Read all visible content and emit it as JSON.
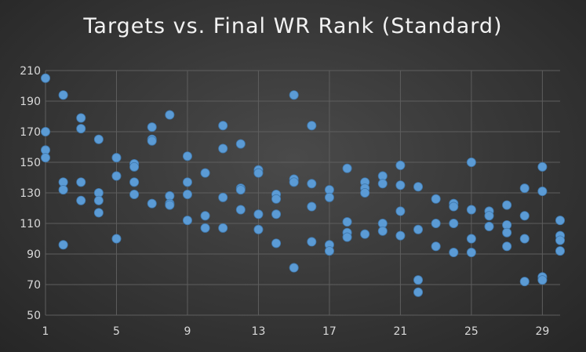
{
  "chart_data": {
    "type": "scatter",
    "title": "Targets vs. Final WR Rank (Standard)",
    "xlabel": "",
    "ylabel": "",
    "xlim": [
      1,
      30
    ],
    "ylim": [
      50,
      210
    ],
    "x_ticks": [
      1,
      5,
      9,
      13,
      17,
      21,
      25,
      29
    ],
    "y_ticks": [
      50,
      70,
      90,
      110,
      130,
      150,
      170,
      190,
      210
    ],
    "grid": true,
    "legend": "none",
    "point_color": "#5b9bd5",
    "background_color": "#3a3a3a",
    "series": [
      {
        "points": [
          [
            1,
            205
          ],
          [
            1,
            170
          ],
          [
            1,
            158
          ],
          [
            1,
            153
          ],
          [
            2,
            194
          ],
          [
            2,
            137
          ],
          [
            2,
            132
          ],
          [
            2,
            96
          ],
          [
            3,
            179
          ],
          [
            3,
            172
          ],
          [
            3,
            137
          ],
          [
            3,
            125
          ],
          [
            4,
            165
          ],
          [
            4,
            130
          ],
          [
            4,
            125
          ],
          [
            4,
            117
          ],
          [
            5,
            153
          ],
          [
            5,
            141
          ],
          [
            5,
            100
          ],
          [
            6,
            149
          ],
          [
            6,
            147
          ],
          [
            6,
            137
          ],
          [
            6,
            129
          ],
          [
            7,
            173
          ],
          [
            7,
            165
          ],
          [
            7,
            164
          ],
          [
            7,
            123
          ],
          [
            8,
            181
          ],
          [
            8,
            128
          ],
          [
            8,
            123
          ],
          [
            8,
            122
          ],
          [
            9,
            154
          ],
          [
            9,
            137
          ],
          [
            9,
            129
          ],
          [
            9,
            112
          ],
          [
            10,
            143
          ],
          [
            10,
            115
          ],
          [
            10,
            107
          ],
          [
            11,
            174
          ],
          [
            11,
            159
          ],
          [
            11,
            127
          ],
          [
            11,
            107
          ],
          [
            12,
            162
          ],
          [
            12,
            133
          ],
          [
            12,
            132
          ],
          [
            12,
            119
          ],
          [
            13,
            145
          ],
          [
            13,
            143
          ],
          [
            13,
            116
          ],
          [
            13,
            106
          ],
          [
            14,
            129
          ],
          [
            14,
            126
          ],
          [
            14,
            116
          ],
          [
            14,
            97
          ],
          [
            15,
            194
          ],
          [
            15,
            139
          ],
          [
            15,
            137
          ],
          [
            15,
            81
          ],
          [
            16,
            174
          ],
          [
            16,
            136
          ],
          [
            16,
            121
          ],
          [
            16,
            98
          ],
          [
            17,
            132
          ],
          [
            17,
            127
          ],
          [
            17,
            96
          ],
          [
            17,
            92
          ],
          [
            18,
            146
          ],
          [
            18,
            111
          ],
          [
            18,
            104
          ],
          [
            18,
            101
          ],
          [
            19,
            137
          ],
          [
            19,
            133
          ],
          [
            19,
            130
          ],
          [
            19,
            103
          ],
          [
            20,
            141
          ],
          [
            20,
            136
          ],
          [
            20,
            110
          ],
          [
            20,
            105
          ],
          [
            21,
            148
          ],
          [
            21,
            135
          ],
          [
            21,
            118
          ],
          [
            21,
            102
          ],
          [
            22,
            134
          ],
          [
            22,
            106
          ],
          [
            22,
            73
          ],
          [
            22,
            65
          ],
          [
            23,
            126
          ],
          [
            23,
            110
          ],
          [
            23,
            95
          ],
          [
            24,
            123
          ],
          [
            24,
            121
          ],
          [
            24,
            110
          ],
          [
            24,
            91
          ],
          [
            25,
            150
          ],
          [
            25,
            119
          ],
          [
            25,
            100
          ],
          [
            25,
            91
          ],
          [
            26,
            118
          ],
          [
            26,
            115
          ],
          [
            26,
            108
          ],
          [
            27,
            122
          ],
          [
            27,
            109
          ],
          [
            27,
            104
          ],
          [
            27,
            95
          ],
          [
            28,
            133
          ],
          [
            28,
            115
          ],
          [
            28,
            100
          ],
          [
            28,
            72
          ],
          [
            29,
            147
          ],
          [
            29,
            131
          ],
          [
            29,
            75
          ],
          [
            29,
            73
          ],
          [
            30,
            112
          ],
          [
            30,
            102
          ],
          [
            30,
            99
          ],
          [
            30,
            92
          ]
        ]
      }
    ]
  }
}
